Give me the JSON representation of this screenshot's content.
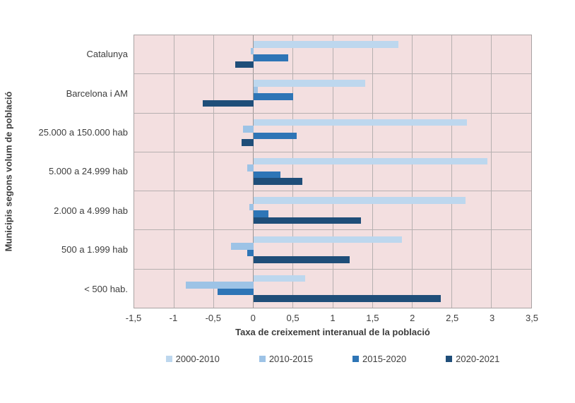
{
  "figure": {
    "background": "#ffffff",
    "plot_background": "#f3dfe0",
    "grid_color": "#b6b0b0",
    "zero_line_color": "#9b9595",
    "plot_border_color": "#a9a3a3",
    "text_color": "#3d3d3d"
  },
  "chart_data": {
    "type": "bar",
    "orientation": "horizontal",
    "xlabel": "Taxa de creixement interanual de la població",
    "ylabel": "Municipis segons volum de població",
    "xlim": [
      -1.5,
      3.5
    ],
    "grid": true,
    "legend_position": "bottom",
    "xticks": [
      {
        "value": -1.5,
        "label": "-1,5"
      },
      {
        "value": -1.0,
        "label": "-1"
      },
      {
        "value": -0.5,
        "label": "-0,5"
      },
      {
        "value": 0.0,
        "label": "0"
      },
      {
        "value": 0.5,
        "label": "0,5"
      },
      {
        "value": 1.0,
        "label": "1"
      },
      {
        "value": 1.5,
        "label": "1,5"
      },
      {
        "value": 2.0,
        "label": "2"
      },
      {
        "value": 2.5,
        "label": "2,5"
      },
      {
        "value": 3.0,
        "label": "3"
      },
      {
        "value": 3.5,
        "label": "3,5"
      }
    ],
    "categories": [
      "Catalunya",
      "Barcelona i AM",
      "25.000 a 150.000 hab",
      "5.000 a 24.999 hab",
      "2.000 a 4.999 hab",
      "500 a 1.999 hab",
      "< 500 hab."
    ],
    "series": [
      {
        "name": "2000-2010",
        "color": "#bdd7ee",
        "values": [
          1.83,
          1.41,
          2.69,
          2.95,
          2.67,
          1.87,
          0.65
        ]
      },
      {
        "name": "2010-2015",
        "color": "#9dc3e6",
        "values": [
          -0.03,
          0.06,
          -0.13,
          -0.08,
          -0.05,
          -0.28,
          -0.85
        ]
      },
      {
        "name": "2015-2020",
        "color": "#2e75b6",
        "values": [
          0.44,
          0.5,
          0.55,
          0.34,
          0.19,
          -0.08,
          -0.45
        ]
      },
      {
        "name": "2020-2021",
        "color": "#1f4e79",
        "values": [
          -0.23,
          -0.64,
          -0.15,
          0.62,
          1.36,
          1.21,
          2.36
        ]
      }
    ]
  }
}
